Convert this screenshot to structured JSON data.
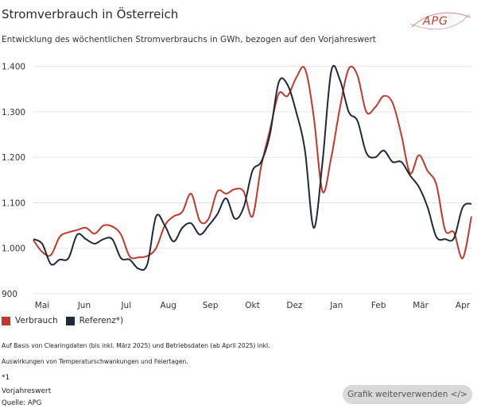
{
  "header": {
    "title": "Stromverbrauch in Österreich",
    "subtitle": "Entwicklung des wöchentlichen Stromverbrauchs in GWh, bezogen auf den Vorjahreswert",
    "logo_text": "APG",
    "logo_icon": "apg-logo"
  },
  "chart_data": {
    "type": "line",
    "title": "Stromverbrauch in Österreich",
    "subtitle": "Entwicklung des wöchentlichen Stromverbrauchs in GWh, bezogen auf den Vorjahreswert",
    "x_labels": [
      "Mai",
      "Jun",
      "Jul",
      "Aug",
      "Sep",
      "Okt",
      "Dez",
      "Jan",
      "Feb",
      "Mär",
      "Apr"
    ],
    "y_ticks": [
      900,
      1000,
      1100,
      1200,
      1300,
      1400
    ],
    "y_tick_labels": [
      "900",
      "1.000",
      "1.100",
      "1.200",
      "1.300",
      "1.400"
    ],
    "ylim": [
      900,
      1410
    ],
    "grid": true,
    "legend_position": "bottom-left",
    "series": [
      {
        "name": "Verbrauch",
        "color": "#c0392b",
        "values": [
          1018,
          992,
          985,
          1025,
          1035,
          1040,
          1045,
          1032,
          1050,
          1048,
          1030,
          982,
          980,
          983,
          1000,
          1050,
          1070,
          1080,
          1120,
          1060,
          1065,
          1125,
          1120,
          1130,
          1125,
          1070,
          1180,
          1260,
          1340,
          1335,
          1375,
          1395,
          1290,
          1125,
          1200,
          1310,
          1395,
          1380,
          1300,
          1310,
          1335,
          1320,
          1250,
          1165,
          1205,
          1170,
          1140,
          1040,
          1035,
          978,
          1070
        ]
      },
      {
        "name": "Referenz*)",
        "color": "#1d2b38",
        "values": [
          1020,
          1010,
          965,
          975,
          978,
          1030,
          1020,
          1010,
          1020,
          1020,
          978,
          975,
          955,
          965,
          1070,
          1050,
          1015,
          1045,
          1055,
          1030,
          1050,
          1075,
          1110,
          1065,
          1090,
          1170,
          1190,
          1250,
          1365,
          1360,
          1300,
          1215,
          1045,
          1190,
          1390,
          1370,
          1300,
          1280,
          1210,
          1200,
          1215,
          1190,
          1190,
          1160,
          1135,
          1090,
          1025,
          1020,
          1022,
          1090,
          1098
        ]
      }
    ]
  },
  "legend": {
    "items": [
      {
        "label": "Verbrauch",
        "color": "#c0392b"
      },
      {
        "label": "Referenz*)",
        "color": "#1d2b38"
      }
    ]
  },
  "notes": {
    "line1": "Auf Basis von Clearingdaten (bis inkl. März 2025) und Betriebsdaten (ab April 2025) inkl.",
    "line2": "Auswirkungen von Temperaturschwankungen und Feiertagen.",
    "footnote_marker": "*1",
    "footnote_text": "Vorjahreswert",
    "source": "Quelle: APG"
  },
  "actions": {
    "reuse_button": "Grafik weiterverwenden </>"
  },
  "colors": {
    "accent_red": "#c0392b",
    "dark_navy": "#1d2b38",
    "grid": "#e3e3e3",
    "button_bg": "#d9d9d9"
  }
}
